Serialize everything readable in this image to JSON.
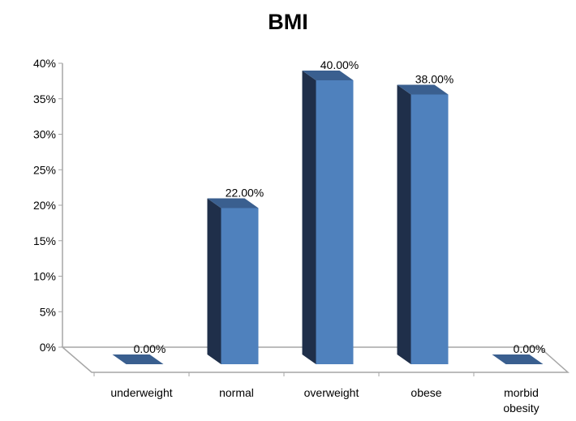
{
  "chart_data": {
    "type": "bar",
    "title": "BMI",
    "categories": [
      "underweight",
      "normal",
      "overweight",
      "obese",
      "morbid obesity"
    ],
    "values": [
      0.0,
      22.0,
      40.0,
      38.0,
      0.0
    ],
    "data_labels": [
      "0.00%",
      "22.00%",
      "40.00%",
      "38.00%",
      "0.00%"
    ],
    "ylim": [
      0,
      40
    ],
    "yticks": [
      0,
      5,
      10,
      15,
      20,
      25,
      30,
      35,
      40
    ],
    "ytick_labels": [
      "0%",
      "5%",
      "10%",
      "15%",
      "20%",
      "25%",
      "30%",
      "35%",
      "40%"
    ],
    "xlabel": "",
    "ylabel": "",
    "grid": false,
    "legend": "none",
    "colors": {
      "bar_front": "#4f81bd",
      "bar_side": "#1f2f4a",
      "bar_top": "#3a5f8f",
      "axis": "#a6a6a6"
    }
  }
}
